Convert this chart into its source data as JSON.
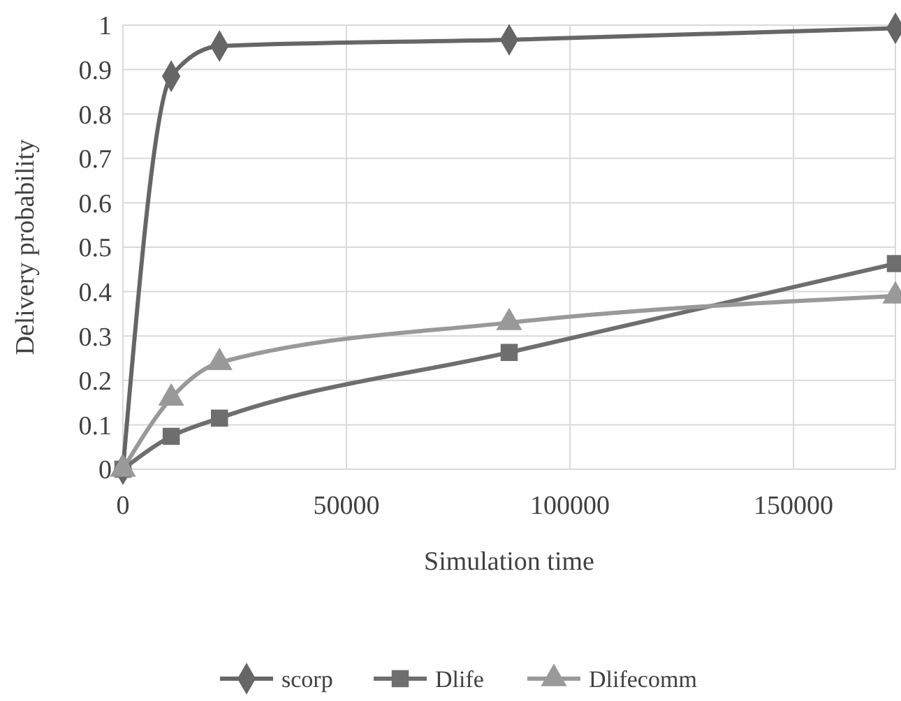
{
  "chart_data": {
    "type": "line",
    "xlabel": "Simulation time",
    "ylabel": "Delivery probability",
    "x": [
      0,
      10800,
      21600,
      86400,
      172800
    ],
    "xlim": [
      0,
      172800
    ],
    "xticks": [
      0,
      50000,
      100000,
      150000
    ],
    "ylim": [
      0,
      1
    ],
    "yticks": [
      0,
      0.1,
      0.2,
      0.3,
      0.4,
      0.5,
      0.6,
      0.7,
      0.8,
      0.9,
      1
    ],
    "grid": true,
    "legend": "bottom",
    "line_style": "solid",
    "series": [
      {
        "name": "scorp",
        "color": "#666666",
        "marker": "diamond",
        "values": [
          0,
          0.885,
          0.953,
          0.967,
          0.993
        ]
      },
      {
        "name": "Dlife",
        "color": "#6e6e6e",
        "marker": "square",
        "values": [
          0,
          0.074,
          0.115,
          0.263,
          0.463
        ]
      },
      {
        "name": "Dlifecomm",
        "color": "#999999",
        "marker": "triangle",
        "values": [
          0,
          0.16,
          0.24,
          0.33,
          0.39
        ]
      }
    ]
  }
}
